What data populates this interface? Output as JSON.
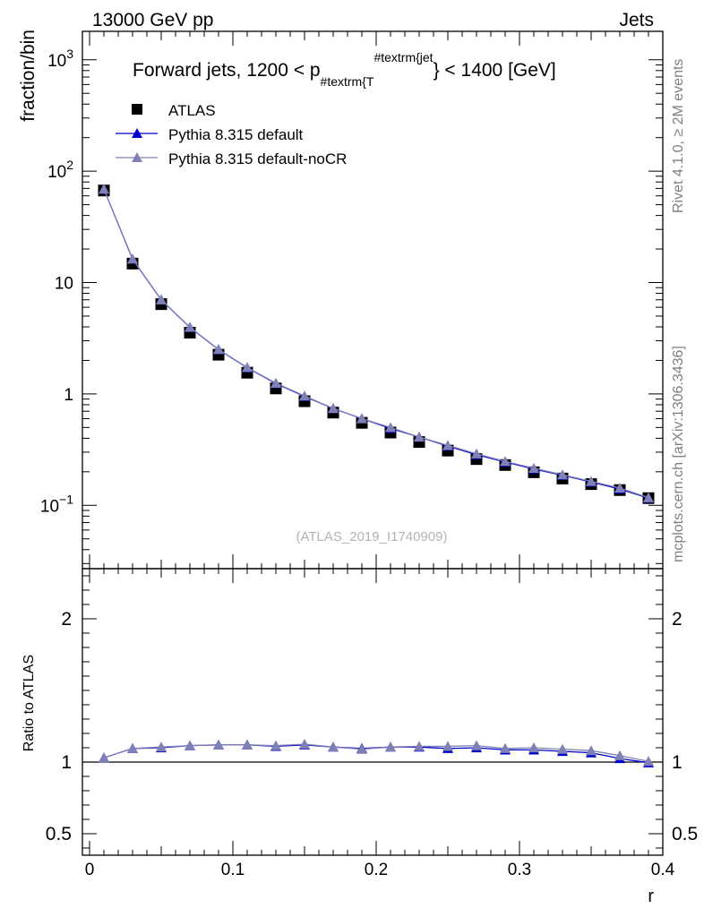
{
  "header": {
    "left": "13000 GeV pp",
    "right": "Jets"
  },
  "side_labels": {
    "rivet": "Rivet 4.1.0, ≥ 2M events",
    "mcplots": "mcplots.cern.ch [arXiv:1306.3436]"
  },
  "watermark": "(ATLAS_2019_I1740909)",
  "chart_data": [
    {
      "type": "scatter",
      "panel": "main",
      "title_parts": {
        "pre": "Forward jets, 1200 < p",
        "sub": "#textrm{T",
        "sup": "#textrm{jet",
        "post": "} < 1400 [GeV]"
      },
      "ylabel": "fraction/bin",
      "xlabel": "",
      "yscale": "log",
      "ylim": [
        0.027,
        1800
      ],
      "xlim": [
        -0.005,
        0.4
      ],
      "yticks": [
        {
          "v": 1000,
          "base": "10",
          "exp": "3"
        },
        {
          "v": 100,
          "base": "10",
          "exp": "2"
        },
        {
          "v": 10,
          "base": "10",
          "exp": ""
        },
        {
          "v": 1,
          "base": "1",
          "exp": ""
        },
        {
          "v": 0.1,
          "base": "10",
          "exp": "−1"
        }
      ],
      "x": [
        0.01,
        0.03,
        0.05,
        0.07,
        0.09,
        0.11,
        0.13,
        0.15,
        0.17,
        0.19,
        0.21,
        0.23,
        0.25,
        0.27,
        0.29,
        0.31,
        0.33,
        0.35,
        0.37,
        0.39
      ],
      "series": [
        {
          "name": "ATLAS",
          "marker": "square",
          "color": "#000000",
          "values": [
            67,
            14.8,
            6.4,
            3.55,
            2.25,
            1.55,
            1.12,
            0.86,
            0.68,
            0.55,
            0.45,
            0.37,
            0.31,
            0.26,
            0.23,
            0.198,
            0.174,
            0.155,
            0.137,
            0.116
          ]
        },
        {
          "name": "Pythia 8.315 default",
          "marker": "triangle",
          "color": "#0000cc",
          "values": [
            69,
            16.2,
            7.0,
            3.95,
            2.5,
            1.72,
            1.24,
            0.95,
            0.74,
            0.6,
            0.49,
            0.41,
            0.34,
            0.285,
            0.245,
            0.212,
            0.186,
            0.162,
            0.14,
            0.116
          ]
        },
        {
          "name": "Pythia 8.315 default-noCR",
          "marker": "triangle",
          "color": "#8080b8",
          "values": [
            69,
            16.3,
            7.0,
            3.97,
            2.51,
            1.73,
            1.25,
            0.96,
            0.74,
            0.6,
            0.5,
            0.41,
            0.345,
            0.29,
            0.248,
            0.215,
            0.188,
            0.164,
            0.143,
            0.117
          ]
        }
      ]
    },
    {
      "type": "scatter",
      "panel": "ratio",
      "ylabel": "Ratio to ATLAS",
      "xlabel": "r",
      "ylim": [
        0.35,
        2.35
      ],
      "xlim": [
        -0.005,
        0.4
      ],
      "yticks": [
        "0.5",
        "1",
        "2"
      ],
      "xticks": [
        "0",
        "0.1",
        "0.2",
        "0.3",
        "0.4"
      ],
      "reference_line": 1,
      "x": [
        0.01,
        0.03,
        0.05,
        0.07,
        0.09,
        0.11,
        0.13,
        0.15,
        0.17,
        0.19,
        0.21,
        0.23,
        0.25,
        0.27,
        0.29,
        0.31,
        0.33,
        0.35,
        0.37,
        0.39
      ],
      "series": [
        {
          "name": "Pythia 8.315 default",
          "color": "#0000cc",
          "values": [
            1.03,
            1.095,
            1.1,
            1.115,
            1.12,
            1.12,
            1.11,
            1.12,
            1.105,
            1.095,
            1.105,
            1.105,
            1.095,
            1.1,
            1.085,
            1.085,
            1.075,
            1.065,
            1.025,
            0.995
          ]
        },
        {
          "name": "Pythia 8.315 default-noCR",
          "color": "#8080b8",
          "values": [
            1.03,
            1.095,
            1.105,
            1.115,
            1.12,
            1.12,
            1.115,
            1.125,
            1.105,
            1.09,
            1.105,
            1.11,
            1.11,
            1.115,
            1.095,
            1.1,
            1.09,
            1.08,
            1.045,
            1.005
          ]
        }
      ]
    }
  ]
}
